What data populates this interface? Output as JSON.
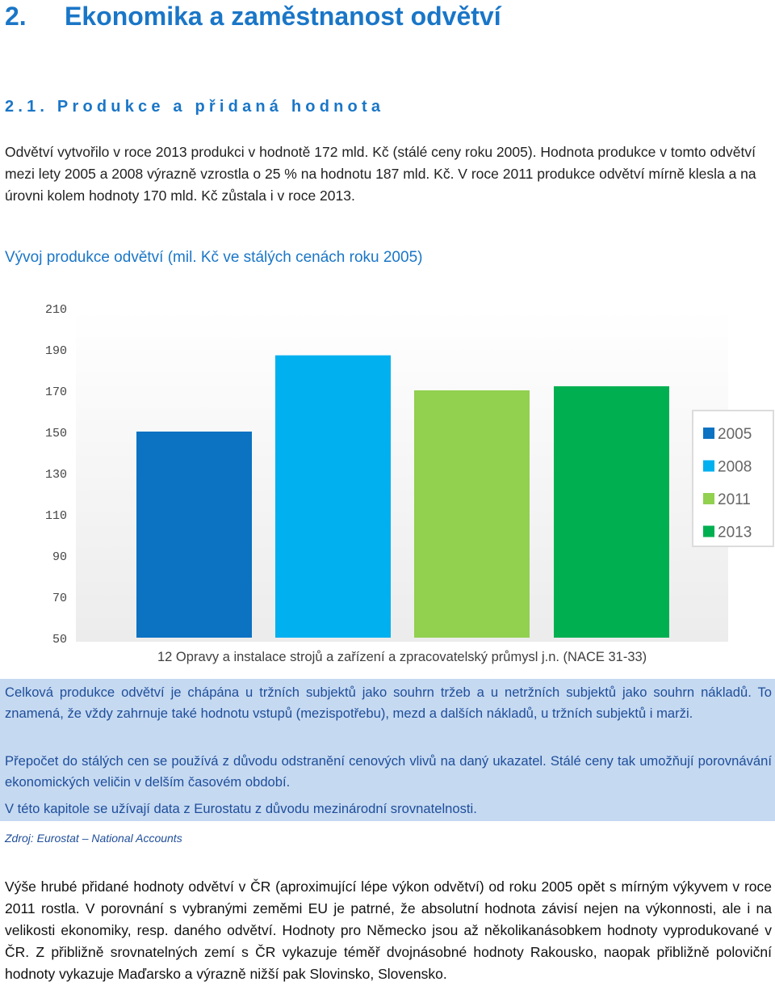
{
  "heading": {
    "number": "2.",
    "title": "Ekonomika a zaměstnanost odvětví"
  },
  "subheading": "2.1. Produkce a přidaná hodnota",
  "intro_paragraph": "Odvětví vytvořilo v roce 2013 produkci v hodnotě 172 mld. Kč (stálé ceny roku 2005). Hodnota produkce v tomto odvětví mezi lety 2005 a 2008 výrazně vzrostla o 25 % na hodnotu 187 mld. Kč. V roce 2011 produkce odvětví mírně klesla a na úrovni kolem hodnoty 170 mld. Kč zůstala i v roce 2013.",
  "chart_heading": "Vývoj produkce odvětví (mil. Kč ve stálých cenách roku 2005)",
  "chart_data": {
    "type": "bar",
    "title": "",
    "xlabel": "",
    "ylabel": "",
    "categories": [
      "12 Opravy a instalace strojů a zařízení a zpracovatelský průmysl j.n. (NACE 31-33)"
    ],
    "series": [
      {
        "name": "2005",
        "values": [
          150
        ],
        "color": "#0c72c2"
      },
      {
        "name": "2008",
        "values": [
          187
        ],
        "color": "#00b0ef"
      },
      {
        "name": "2011",
        "values": [
          170
        ],
        "color": "#92d050"
      },
      {
        "name": "2013",
        "values": [
          172
        ],
        "color": "#00b050"
      }
    ],
    "yticks": [
      "210",
      "190",
      "170",
      "150",
      "130",
      "110",
      "90",
      "70",
      "50"
    ],
    "ylim": [
      50,
      210
    ],
    "grid": false,
    "legend": "right"
  },
  "note": {
    "p1": "Celková produkce odvětví je chápána u tržních subjektů jako souhrn tržeb a u netržních subjektů jako souhrn nákladů. To znamená, že vždy zahrnuje také hodnotu vstupů (mezispotřebu), mezd a dalších nákladů, u tržních subjektů i marži.",
    "p2": "Přepočet do stálých cen se používá z důvodu odstranění cenových vlivů na daný ukazatel. Stálé ceny tak umožňují porovnávání ekonomických veličin v delším časovém období.",
    "p3": "V této kapitole se užívají data z Eurostatu z důvodu mezinárodní srovnatelnosti."
  },
  "source": "Zdroj: Eurostat – National Accounts",
  "closing_paragraph": "Výše hrubé přidané hodnoty odvětví v ČR (aproximující lépe výkon odvětví) od roku 2005 opět s mírným výkyvem v roce 2011 rostla. V porovnání s vybranými zeměmi EU je patrné, že absolutní hodnota závisí nejen na výkonnosti, ale i na velikosti ekonomiky, resp. daného odvětví. Hodnoty pro Německo jsou až několikanásobkem hodnoty vyprodukované v ČR. Z přibližně srovnatelných zemí s ČR vykazuje téměř dvojnásobné hodnoty Rakousko, naopak přibližně poloviční hodnoty vykazuje Maďarsko a výrazně nižší pak Slovinsko, Slovensko."
}
